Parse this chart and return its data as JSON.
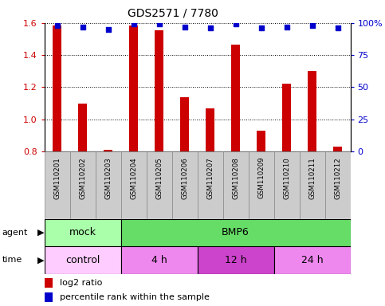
{
  "title": "GDS2571 / 7780",
  "samples": [
    "GSM110201",
    "GSM110202",
    "GSM110203",
    "GSM110204",
    "GSM110205",
    "GSM110206",
    "GSM110207",
    "GSM110208",
    "GSM110209",
    "GSM110210",
    "GSM110211",
    "GSM110212"
  ],
  "log2_ratio": [
    1.585,
    1.1,
    0.81,
    1.585,
    1.555,
    1.14,
    1.07,
    1.465,
    0.93,
    1.22,
    1.3,
    0.83
  ],
  "percentile": [
    98,
    97,
    95,
    99,
    99,
    97,
    96,
    99,
    96,
    97,
    98,
    96
  ],
  "bar_color": "#cc0000",
  "dot_color": "#0000cc",
  "ylim_left": [
    0.8,
    1.6
  ],
  "ylim_right": [
    0,
    100
  ],
  "yticks_left": [
    0.8,
    1.0,
    1.2,
    1.4,
    1.6
  ],
  "yticks_right": [
    0,
    25,
    50,
    75,
    100
  ],
  "agent_groups": [
    {
      "label": "mock",
      "start": 0,
      "end": 3,
      "color": "#aaffaa"
    },
    {
      "label": "BMP6",
      "start": 3,
      "end": 12,
      "color": "#66dd66"
    }
  ],
  "time_groups": [
    {
      "label": "control",
      "start": 0,
      "end": 3,
      "color": "#ffccff"
    },
    {
      "label": "4 h",
      "start": 3,
      "end": 6,
      "color": "#ee88ee"
    },
    {
      "label": "12 h",
      "start": 6,
      "end": 9,
      "color": "#cc44cc"
    },
    {
      "label": "24 h",
      "start": 9,
      "end": 12,
      "color": "#ee88ee"
    }
  ],
  "legend_red": "log2 ratio",
  "legend_blue": "percentile rank within the sample",
  "bar_bottom": 0.8,
  "sample_box_color": "#cccccc",
  "left_tick_color": "#cc0000",
  "right_tick_color": "#0000cc",
  "bar_width": 0.35
}
